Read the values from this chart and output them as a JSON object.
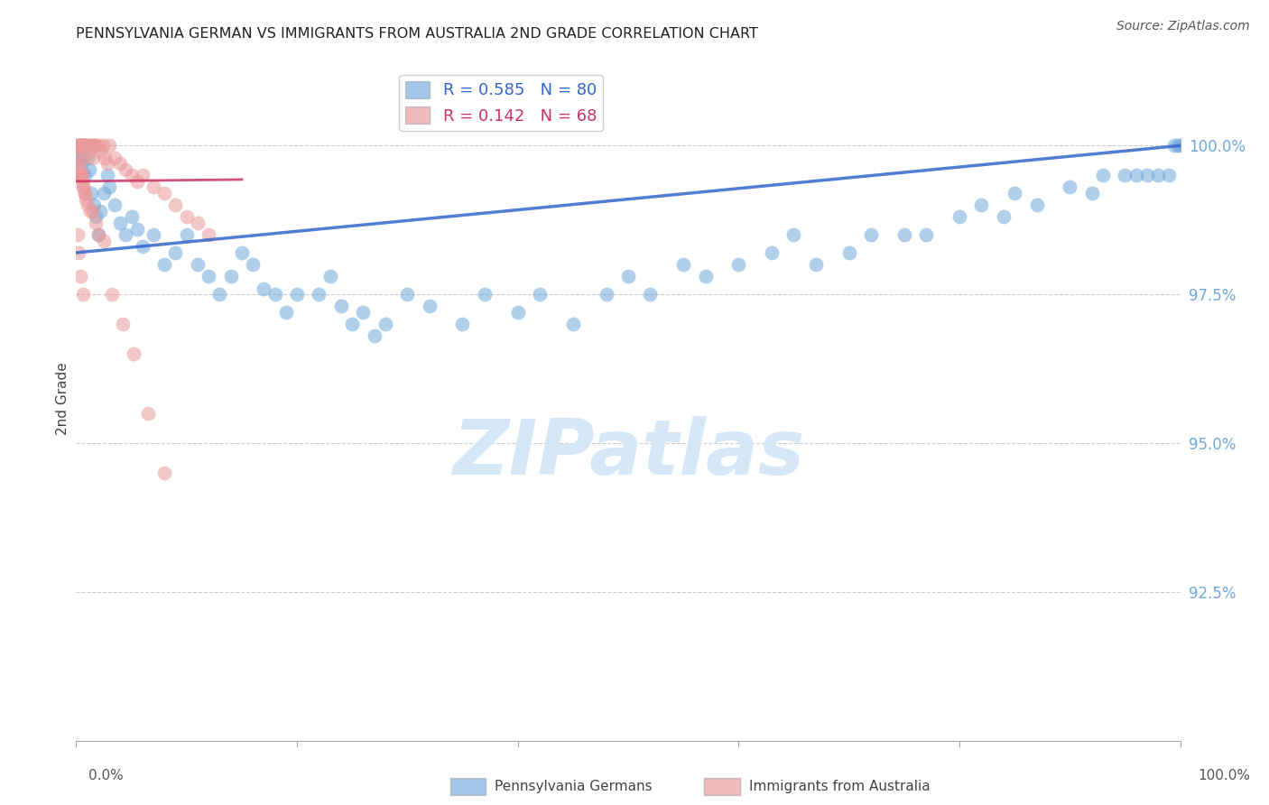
{
  "title": "PENNSYLVANIA GERMAN VS IMMIGRANTS FROM AUSTRALIA 2ND GRADE CORRELATION CHART",
  "source": "Source: ZipAtlas.com",
  "ylabel": "2nd Grade",
  "xlim": [
    0.0,
    100.0
  ],
  "ylim": [
    90.0,
    101.5
  ],
  "R_blue": 0.585,
  "N_blue": 80,
  "R_pink": 0.142,
  "N_pink": 68,
  "blue_color": "#6fa8dc",
  "pink_color": "#ea9999",
  "trend_blue": "#3366cc",
  "trend_pink": "#cc3366",
  "watermark_color": "#d6e8f7",
  "blue_points_x": [
    0.2,
    0.3,
    0.4,
    0.5,
    0.6,
    0.7,
    0.8,
    1.0,
    1.2,
    1.4,
    1.6,
    1.8,
    2.0,
    2.2,
    2.5,
    2.8,
    3.0,
    3.5,
    4.0,
    4.5,
    5.0,
    5.5,
    6.0,
    7.0,
    8.0,
    9.0,
    10.0,
    11.0,
    12.0,
    13.0,
    14.0,
    15.0,
    16.0,
    17.0,
    18.0,
    19.0,
    20.0,
    22.0,
    23.0,
    24.0,
    25.0,
    26.0,
    27.0,
    28.0,
    30.0,
    32.0,
    35.0,
    37.0,
    40.0,
    42.0,
    45.0,
    48.0,
    50.0,
    52.0,
    55.0,
    57.0,
    60.0,
    63.0,
    65.0,
    67.0,
    70.0,
    72.0,
    75.0,
    77.0,
    80.0,
    82.0,
    84.0,
    85.0,
    87.0,
    90.0,
    92.0,
    93.0,
    95.0,
    96.0,
    97.0,
    98.0,
    99.0,
    99.5,
    99.8,
    100.0
  ],
  "blue_points_y": [
    99.8,
    99.9,
    100.0,
    99.7,
    100.0,
    100.0,
    99.5,
    99.8,
    99.6,
    99.2,
    99.0,
    98.8,
    98.5,
    98.9,
    99.2,
    99.5,
    99.3,
    99.0,
    98.7,
    98.5,
    98.8,
    98.6,
    98.3,
    98.5,
    98.0,
    98.2,
    98.5,
    98.0,
    97.8,
    97.5,
    97.8,
    98.2,
    98.0,
    97.6,
    97.5,
    97.2,
    97.5,
    97.5,
    97.8,
    97.3,
    97.0,
    97.2,
    96.8,
    97.0,
    97.5,
    97.3,
    97.0,
    97.5,
    97.2,
    97.5,
    97.0,
    97.5,
    97.8,
    97.5,
    98.0,
    97.8,
    98.0,
    98.2,
    98.5,
    98.0,
    98.2,
    98.5,
    98.5,
    98.5,
    98.8,
    99.0,
    98.8,
    99.2,
    99.0,
    99.3,
    99.2,
    99.5,
    99.5,
    99.5,
    99.5,
    99.5,
    99.5,
    100.0,
    100.0,
    100.0
  ],
  "pink_points_x": [
    0.1,
    0.2,
    0.3,
    0.3,
    0.4,
    0.5,
    0.5,
    0.6,
    0.7,
    0.7,
    0.8,
    0.9,
    1.0,
    1.1,
    1.2,
    1.4,
    1.5,
    1.6,
    1.7,
    1.8,
    2.0,
    2.2,
    2.4,
    2.6,
    2.8,
    3.0,
    3.5,
    4.0,
    4.5,
    5.0,
    5.5,
    6.0,
    7.0,
    8.0,
    9.0,
    10.0,
    11.0,
    12.0,
    0.1,
    0.2,
    0.3,
    0.4,
    0.5,
    0.6,
    0.8,
    1.0,
    1.5,
    2.0,
    0.15,
    0.25,
    0.35,
    0.45,
    0.55,
    0.65,
    0.75,
    0.85,
    1.3,
    1.8,
    2.5,
    3.2,
    4.2,
    5.2,
    6.5,
    8.0,
    0.1,
    0.2,
    0.4,
    0.6
  ],
  "pink_points_y": [
    100.0,
    100.0,
    100.0,
    100.0,
    100.0,
    100.0,
    100.0,
    100.0,
    100.0,
    99.8,
    100.0,
    100.0,
    100.0,
    99.9,
    100.0,
    100.0,
    99.8,
    100.0,
    100.0,
    100.0,
    100.0,
    99.9,
    100.0,
    99.8,
    99.7,
    100.0,
    99.8,
    99.7,
    99.6,
    99.5,
    99.4,
    99.5,
    99.3,
    99.2,
    99.0,
    98.8,
    98.7,
    98.5,
    99.5,
    99.5,
    99.5,
    99.5,
    99.5,
    99.3,
    99.2,
    99.0,
    98.9,
    98.5,
    99.8,
    99.7,
    99.6,
    99.5,
    99.4,
    99.3,
    99.2,
    99.1,
    98.9,
    98.7,
    98.4,
    97.5,
    97.0,
    96.5,
    95.5,
    94.5,
    98.5,
    98.2,
    97.8,
    97.5
  ],
  "blue_trend_x": [
    0,
    100
  ],
  "blue_trend_y": [
    98.2,
    100.0
  ],
  "pink_trend_x": [
    0,
    15
  ],
  "pink_trend_y": [
    99.4,
    99.43
  ],
  "yticks": [
    92.5,
    95.0,
    97.5,
    100.0
  ],
  "gridline_color": "#cccccc",
  "legend_label_blue": "R = 0.585   N = 80",
  "legend_label_pink": "R = 0.142   N = 68",
  "bottom_legend_blue": "Pennsylvania Germans",
  "bottom_legend_pink": "Immigrants from Australia"
}
